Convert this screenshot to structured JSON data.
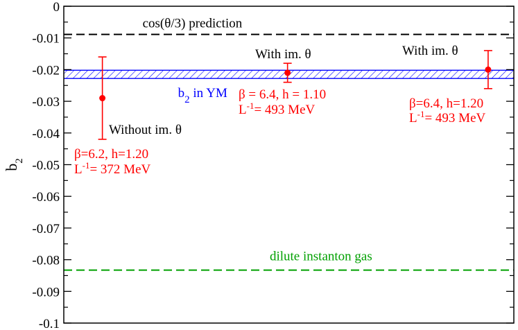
{
  "chart_data": {
    "type": "scatter",
    "title": "",
    "xlabel": "",
    "ylabel": {
      "base": "b",
      "sub": "2"
    },
    "ylim": [
      -0.1,
      0
    ],
    "yticks": [
      0,
      -0.01,
      -0.02,
      -0.03,
      -0.04,
      -0.05,
      -0.06,
      -0.07,
      -0.08,
      -0.09,
      -0.1
    ],
    "yticklabels": [
      "0",
      "-0.01",
      "-0.02",
      "-0.03",
      "-0.04",
      "-0.05",
      "-0.06",
      "-0.07",
      "-0.08",
      "-0.09",
      "-0.1"
    ],
    "xlim": [
      0,
      3.5
    ],
    "grid": false,
    "colors": {
      "points": "#ff0000",
      "band": "#0000ff",
      "cos_line": "#000000",
      "dig_line": "#00a000"
    },
    "reference_lines": [
      {
        "label": "cos(θ/3) prediction",
        "y": -0.0089,
        "color": "#000000",
        "style": "dashed"
      },
      {
        "label": "dilute instanton gas",
        "y": -0.0833,
        "color": "#00a000",
        "style": "dashed"
      }
    ],
    "band": {
      "label_base": "b",
      "label_sub": "2",
      "label_rest": " in YM",
      "y_low": -0.0228,
      "y_high": -0.0202,
      "color": "#0000ff",
      "hatch": true
    },
    "points": [
      {
        "x": 0.3,
        "y": -0.029,
        "err_low": -0.042,
        "err_high": -0.016,
        "note": "Without im. θ",
        "params": "β=6.2, h=1.20",
        "scale": {
          "pre": "L",
          "sup": "-1",
          "post": "= 372 MeV"
        }
      },
      {
        "x": 1.74,
        "y": -0.021,
        "err_low": -0.024,
        "err_high": -0.018,
        "note": "With im. θ",
        "params": "β = 6.4, h = 1.10",
        "scale": {
          "pre": "L",
          "sup": "-1",
          "post": "= 493 MeV"
        }
      },
      {
        "x": 3.3,
        "y": -0.02,
        "err_low": -0.026,
        "err_high": -0.014,
        "note": "With im. θ",
        "params": "β=6.4, h=1.20",
        "scale": {
          "pre": "L",
          "sup": "-1",
          "post": "= 493 MeV"
        }
      }
    ]
  }
}
